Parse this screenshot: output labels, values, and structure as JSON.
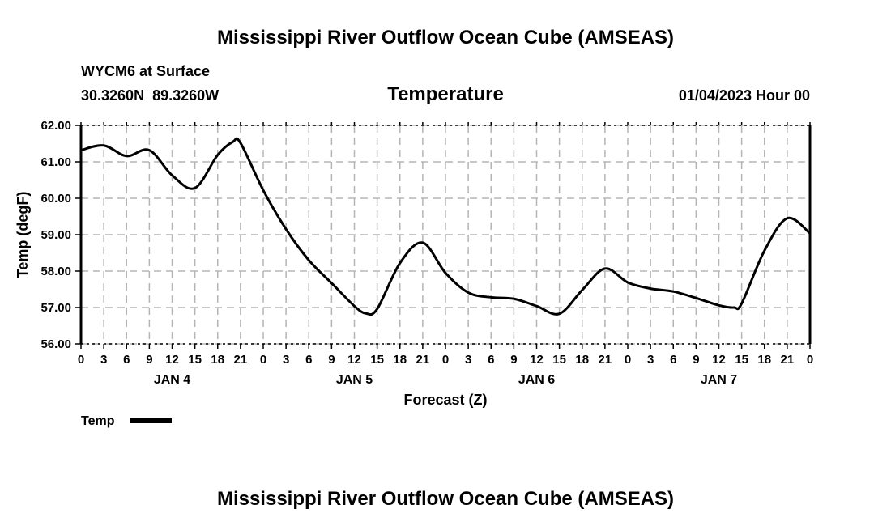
{
  "header": {
    "title": "Mississippi River Outflow Ocean Cube (AMSEAS)",
    "station": "WYCM6 at Surface",
    "location": "30.3260N  89.3260W",
    "variable": "Temperature",
    "datetime": "01/04/2023 Hour 00"
  },
  "footer": {
    "title": "Mississippi River Outflow Ocean Cube (AMSEAS)"
  },
  "chart_data": {
    "type": "line",
    "title": "Temperature",
    "xlabel": "Forecast (Z)",
    "ylabel": "Temp (degF)",
    "ylim": [
      56,
      62
    ],
    "xlim": [
      0,
      96
    ],
    "yticks": [
      "56.00",
      "57.00",
      "58.00",
      "59.00",
      "60.00",
      "61.00",
      "62.00"
    ],
    "xtick_labels": [
      "0",
      "3",
      "6",
      "9",
      "12",
      "15",
      "18",
      "21",
      "0",
      "3",
      "6",
      "9",
      "12",
      "15",
      "18",
      "21",
      "0",
      "3",
      "6",
      "9",
      "12",
      "15",
      "18",
      "21",
      "0",
      "3",
      "6",
      "9",
      "12",
      "15",
      "18",
      "21",
      "0"
    ],
    "day_labels": [
      {
        "hour": 12,
        "label": "JAN 4"
      },
      {
        "hour": 36,
        "label": "JAN 5"
      },
      {
        "hour": 60,
        "label": "JAN 6"
      },
      {
        "hour": 84,
        "label": "JAN 7"
      }
    ],
    "grid": true,
    "legend": {
      "label": "Temp",
      "placement": "bottom-left"
    },
    "series": [
      {
        "name": "Temp",
        "color": "#000000",
        "x": [
          0,
          3,
          6,
          9,
          12,
          15,
          18,
          20,
          21,
          24,
          27,
          30,
          33,
          36,
          37.5,
          39,
          42,
          45,
          48,
          51,
          54,
          57,
          60,
          63,
          66,
          69,
          72,
          75,
          78,
          81,
          84,
          86,
          87,
          90,
          93,
          96
        ],
        "values": [
          61.32,
          61.45,
          61.16,
          61.32,
          60.63,
          60.28,
          61.19,
          61.55,
          61.52,
          60.22,
          59.15,
          58.3,
          57.67,
          57.04,
          56.84,
          56.96,
          58.22,
          58.78,
          57.95,
          57.41,
          57.28,
          57.24,
          57.04,
          56.83,
          57.48,
          58.07,
          57.69,
          57.52,
          57.44,
          57.26,
          57.06,
          57.0,
          57.11,
          58.56,
          59.45,
          59.04
        ]
      }
    ]
  }
}
